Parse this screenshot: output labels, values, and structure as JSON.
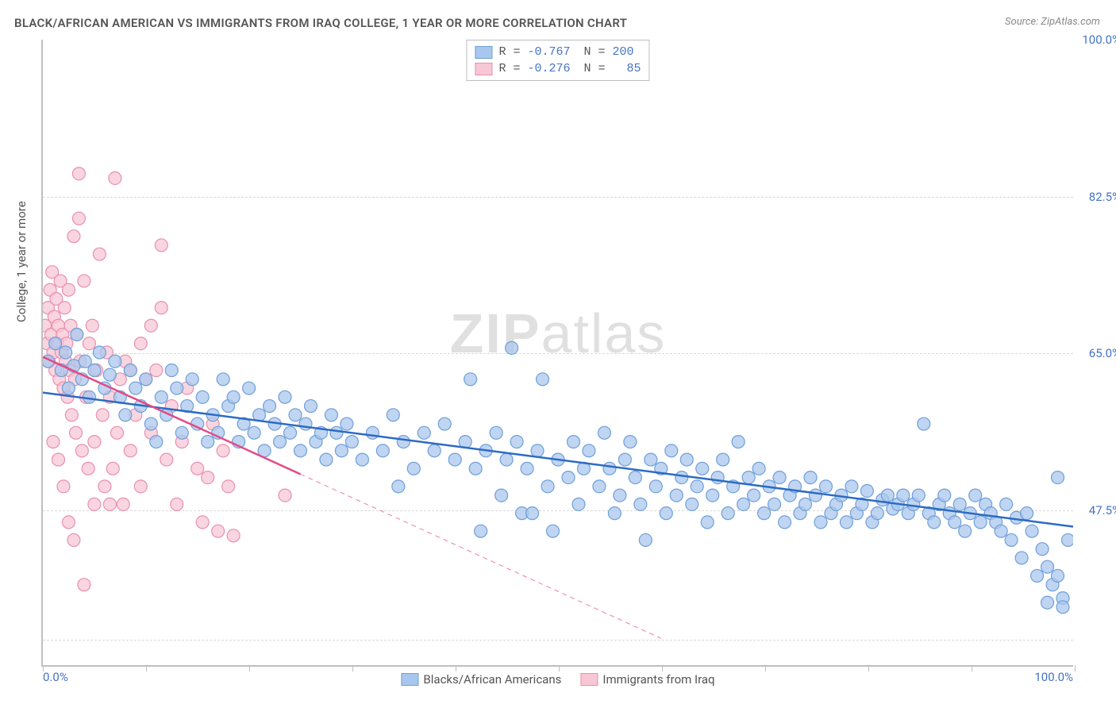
{
  "title": "BLACK/AFRICAN AMERICAN VS IMMIGRANTS FROM IRAQ COLLEGE, 1 YEAR OR MORE CORRELATION CHART",
  "source": "Source: ZipAtlas.com",
  "y_axis_label": "College, 1 year or more",
  "watermark_a": "ZIP",
  "watermark_b": "atlas",
  "chart": {
    "type": "scatter-correlation",
    "xlim": [
      0,
      100
    ],
    "ylim": [
      30,
      100
    ],
    "x_ticks": [
      0,
      10,
      20,
      30,
      40,
      50,
      60,
      70,
      80,
      90,
      100
    ],
    "x_tick_labels": {
      "0": "0.0%",
      "100": "100.0%"
    },
    "y_ticks": [
      47.5,
      65.0,
      82.5,
      100.0
    ],
    "y_tick_labels": [
      "47.5%",
      "65.0%",
      "82.5%",
      "100.0%"
    ],
    "grid_y": [
      33,
      47.5,
      65.0,
      82.5
    ],
    "background_color": "#ffffff",
    "grid_color": "#d8d8d8",
    "axis_color": "#bfbfbf",
    "marker_radius": 8,
    "marker_stroke_width": 1.2,
    "trend_line_width": 2.5,
    "title_fontsize": 15,
    "label_fontsize": 15,
    "tick_fontsize": 15,
    "tick_color": "#4573c4"
  },
  "series": [
    {
      "name": "Blacks/African Americans",
      "legend_label": "Blacks/African Americans",
      "fill": "#a9c7ee",
      "stroke": "#6f9fd8",
      "line_color": "#2d6bc4",
      "R": "-0.767",
      "N": "200",
      "trend": {
        "x1": 0,
        "y1": 60.5,
        "x2": 100,
        "y2": 45.5,
        "solid_to_x": 100
      },
      "points": [
        [
          0.5,
          64
        ],
        [
          1.2,
          66
        ],
        [
          1.8,
          63
        ],
        [
          2.2,
          65
        ],
        [
          2.5,
          61
        ],
        [
          3.0,
          63.5
        ],
        [
          3.3,
          67
        ],
        [
          3.8,
          62
        ],
        [
          4.1,
          64
        ],
        [
          4.5,
          60
        ],
        [
          5.0,
          63
        ],
        [
          5.5,
          65
        ],
        [
          6.0,
          61
        ],
        [
          6.5,
          62.5
        ],
        [
          7.0,
          64
        ],
        [
          7.5,
          60
        ],
        [
          8.0,
          58
        ],
        [
          8.5,
          63
        ],
        [
          9.0,
          61
        ],
        [
          9.5,
          59
        ],
        [
          10,
          62
        ],
        [
          10.5,
          57
        ],
        [
          11,
          55
        ],
        [
          11.5,
          60
        ],
        [
          12,
          58
        ],
        [
          12.5,
          63
        ],
        [
          13,
          61
        ],
        [
          13.5,
          56
        ],
        [
          14,
          59
        ],
        [
          14.5,
          62
        ],
        [
          15,
          57
        ],
        [
          15.5,
          60
        ],
        [
          16,
          55
        ],
        [
          16.5,
          58
        ],
        [
          17,
          56
        ],
        [
          17.5,
          62
        ],
        [
          18,
          59
        ],
        [
          18.5,
          60
        ],
        [
          19,
          55
        ],
        [
          19.5,
          57
        ],
        [
          20,
          61
        ],
        [
          20.5,
          56
        ],
        [
          21,
          58
        ],
        [
          21.5,
          54
        ],
        [
          22,
          59
        ],
        [
          22.5,
          57
        ],
        [
          23,
          55
        ],
        [
          23.5,
          60
        ],
        [
          24,
          56
        ],
        [
          24.5,
          58
        ],
        [
          25,
          54
        ],
        [
          25.5,
          57
        ],
        [
          26,
          59
        ],
        [
          26.5,
          55
        ],
        [
          27,
          56
        ],
        [
          27.5,
          53
        ],
        [
          28,
          58
        ],
        [
          28.5,
          56
        ],
        [
          29,
          54
        ],
        [
          29.5,
          57
        ],
        [
          30,
          55
        ],
        [
          31,
          53
        ],
        [
          32,
          56
        ],
        [
          33,
          54
        ],
        [
          34,
          58
        ],
        [
          34.5,
          50
        ],
        [
          35,
          55
        ],
        [
          36,
          52
        ],
        [
          37,
          56
        ],
        [
          38,
          54
        ],
        [
          39,
          57
        ],
        [
          40,
          53
        ],
        [
          41,
          55
        ],
        [
          41.5,
          62
        ],
        [
          42,
          52
        ],
        [
          42.5,
          45
        ],
        [
          43,
          54
        ],
        [
          44,
          56
        ],
        [
          44.5,
          49
        ],
        [
          45,
          53
        ],
        [
          45.5,
          65.5
        ],
        [
          46,
          55
        ],
        [
          46.5,
          47
        ],
        [
          47,
          52
        ],
        [
          47.5,
          47
        ],
        [
          48,
          54
        ],
        [
          48.5,
          62
        ],
        [
          49,
          50
        ],
        [
          49.5,
          45
        ],
        [
          50,
          53
        ],
        [
          51,
          51
        ],
        [
          51.5,
          55
        ],
        [
          52,
          48
        ],
        [
          52.5,
          52
        ],
        [
          53,
          54
        ],
        [
          54,
          50
        ],
        [
          54.5,
          56
        ],
        [
          55,
          52
        ],
        [
          55.5,
          47
        ],
        [
          56,
          49
        ],
        [
          56.5,
          53
        ],
        [
          57,
          55
        ],
        [
          57.5,
          51
        ],
        [
          58,
          48
        ],
        [
          58.5,
          44
        ],
        [
          59,
          53
        ],
        [
          59.5,
          50
        ],
        [
          60,
          52
        ],
        [
          60.5,
          47
        ],
        [
          61,
          54
        ],
        [
          61.5,
          49
        ],
        [
          62,
          51
        ],
        [
          62.5,
          53
        ],
        [
          63,
          48
        ],
        [
          63.5,
          50
        ],
        [
          64,
          52
        ],
        [
          64.5,
          46
        ],
        [
          65,
          49
        ],
        [
          65.5,
          51
        ],
        [
          66,
          53
        ],
        [
          66.5,
          47
        ],
        [
          67,
          50
        ],
        [
          67.5,
          55
        ],
        [
          68,
          48
        ],
        [
          68.5,
          51
        ],
        [
          69,
          49
        ],
        [
          69.5,
          52
        ],
        [
          70,
          47
        ],
        [
          70.5,
          50
        ],
        [
          71,
          48
        ],
        [
          71.5,
          51
        ],
        [
          72,
          46
        ],
        [
          72.5,
          49
        ],
        [
          73,
          50
        ],
        [
          73.5,
          47
        ],
        [
          74,
          48
        ],
        [
          74.5,
          51
        ],
        [
          75,
          49
        ],
        [
          75.5,
          46
        ],
        [
          76,
          50
        ],
        [
          76.5,
          47
        ],
        [
          77,
          48
        ],
        [
          77.5,
          49
        ],
        [
          78,
          46
        ],
        [
          78.5,
          50
        ],
        [
          79,
          47
        ],
        [
          79.5,
          48
        ],
        [
          80,
          49.5
        ],
        [
          80.5,
          46
        ],
        [
          81,
          47
        ],
        [
          81.5,
          48.5
        ],
        [
          82,
          49
        ],
        [
          82.5,
          47.5
        ],
        [
          83,
          48
        ],
        [
          83.5,
          49
        ],
        [
          84,
          47
        ],
        [
          84.5,
          48
        ],
        [
          85,
          49
        ],
        [
          85.5,
          57
        ],
        [
          86,
          47
        ],
        [
          86.5,
          46
        ],
        [
          87,
          48
        ],
        [
          87.5,
          49
        ],
        [
          88,
          47
        ],
        [
          88.5,
          46
        ],
        [
          89,
          48
        ],
        [
          89.5,
          45
        ],
        [
          90,
          47
        ],
        [
          90.5,
          49
        ],
        [
          91,
          46
        ],
        [
          91.5,
          48
        ],
        [
          92,
          47
        ],
        [
          92.5,
          46
        ],
        [
          93,
          45
        ],
        [
          93.5,
          48
        ],
        [
          94,
          44
        ],
        [
          94.5,
          46.5
        ],
        [
          95,
          42
        ],
        [
          95.5,
          47
        ],
        [
          96,
          45
        ],
        [
          96.5,
          40
        ],
        [
          97,
          43
        ],
        [
          97.5,
          41
        ],
        [
          98,
          39
        ],
        [
          98.5,
          51
        ],
        [
          99,
          37.5
        ],
        [
          99.5,
          44
        ],
        [
          99,
          36.5
        ],
        [
          98.5,
          40
        ],
        [
          97.5,
          37
        ]
      ]
    },
    {
      "name": "Immigrants from Iraq",
      "legend_label": "Immigrants from Iraq",
      "fill": "#f7c7d5",
      "stroke": "#e98fb0",
      "line_color": "#e64884",
      "R": "-0.276",
      "N": "85",
      "trend": {
        "x1": 0,
        "y1": 64.5,
        "x2": 60,
        "y2": 33,
        "solid_to_x": 25
      },
      "points": [
        [
          0.2,
          68
        ],
        [
          0.4,
          66
        ],
        [
          0.5,
          70
        ],
        [
          0.6,
          64
        ],
        [
          0.7,
          72
        ],
        [
          0.8,
          67
        ],
        [
          0.9,
          74
        ],
        [
          1.0,
          65
        ],
        [
          1.1,
          69
        ],
        [
          1.2,
          63
        ],
        [
          1.3,
          71
        ],
        [
          1.4,
          66
        ],
        [
          1.5,
          68
        ],
        [
          1.6,
          62
        ],
        [
          1.7,
          73
        ],
        [
          1.8,
          65
        ],
        [
          1.9,
          67
        ],
        [
          2.0,
          61
        ],
        [
          2.1,
          70
        ],
        [
          2.2,
          64
        ],
        [
          2.3,
          66
        ],
        [
          2.4,
          60
        ],
        [
          2.5,
          72
        ],
        [
          2.6,
          63
        ],
        [
          2.7,
          68
        ],
        [
          2.8,
          58
        ],
        [
          3.0,
          78
        ],
        [
          3.1,
          62
        ],
        [
          3.2,
          56
        ],
        [
          3.3,
          67
        ],
        [
          3.5,
          80
        ],
        [
          3.6,
          64
        ],
        [
          3.8,
          54
        ],
        [
          4.0,
          73
        ],
        [
          4.2,
          60
        ],
        [
          4.4,
          52
        ],
        [
          4.5,
          66
        ],
        [
          4.8,
          68
        ],
        [
          5.0,
          55
        ],
        [
          5.2,
          63
        ],
        [
          5.5,
          76
        ],
        [
          5.8,
          58
        ],
        [
          6.0,
          50
        ],
        [
          6.2,
          65
        ],
        [
          6.5,
          60
        ],
        [
          6.8,
          52
        ],
        [
          7.0,
          84.5
        ],
        [
          7.2,
          56
        ],
        [
          7.5,
          62
        ],
        [
          7.8,
          48
        ],
        [
          8.0,
          64
        ],
        [
          8.5,
          54
        ],
        [
          9.0,
          58
        ],
        [
          9.5,
          50
        ],
        [
          10.0,
          62
        ],
        [
          10.5,
          56
        ],
        [
          11.0,
          63
        ],
        [
          11.5,
          77
        ],
        [
          12.0,
          53
        ],
        [
          12.5,
          59
        ],
        [
          13.0,
          48
        ],
        [
          13.5,
          55
        ],
        [
          14.0,
          61
        ],
        [
          15.0,
          52
        ],
        [
          15.5,
          46
        ],
        [
          16.0,
          51
        ],
        [
          16.5,
          57
        ],
        [
          17.0,
          45
        ],
        [
          17.5,
          54
        ],
        [
          18.0,
          50
        ],
        [
          18.5,
          44.5
        ],
        [
          3.5,
          85
        ],
        [
          4.0,
          39
        ],
        [
          5.0,
          48
        ],
        [
          6.5,
          48
        ],
        [
          1.0,
          55
        ],
        [
          1.5,
          53
        ],
        [
          2.0,
          50
        ],
        [
          2.5,
          46
        ],
        [
          3.0,
          44
        ],
        [
          8.5,
          63
        ],
        [
          9.5,
          66
        ],
        [
          10.5,
          68
        ],
        [
          11.5,
          70
        ],
        [
          23.5,
          49
        ]
      ]
    }
  ],
  "legend_top": {
    "R_label": "R =",
    "N_label": "N ="
  }
}
